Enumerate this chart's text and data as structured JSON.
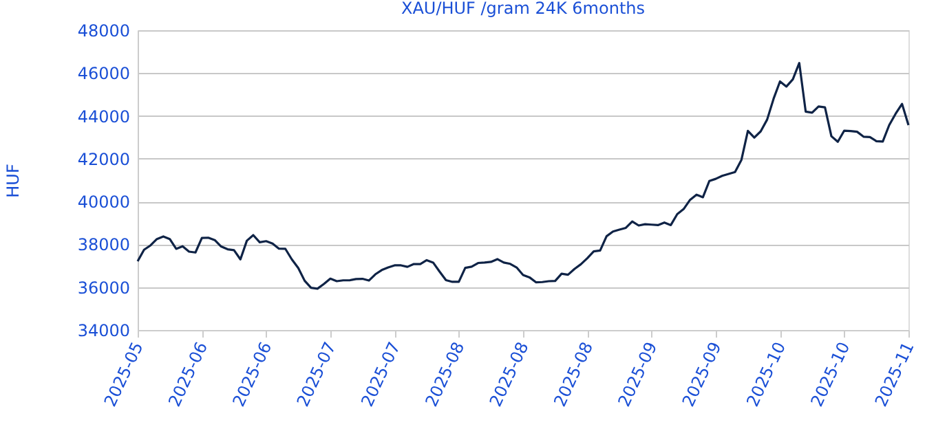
{
  "chart_data": {
    "type": "line",
    "title": "XAU/HUF /gram 24K 6months",
    "ylabel": "HUF",
    "categories": [
      "2025-05",
      null,
      null,
      null,
      null,
      null,
      null,
      null,
      null,
      null,
      "2025-06",
      null,
      null,
      null,
      null,
      null,
      null,
      null,
      null,
      null,
      "2025-06",
      null,
      null,
      null,
      null,
      null,
      null,
      null,
      null,
      null,
      "2025-07",
      null,
      null,
      null,
      null,
      null,
      null,
      null,
      null,
      null,
      "2025-07",
      null,
      null,
      null,
      null,
      null,
      null,
      null,
      null,
      null,
      "2025-08",
      null,
      null,
      null,
      null,
      null,
      null,
      null,
      null,
      null,
      "2025-08",
      null,
      null,
      null,
      null,
      null,
      null,
      null,
      null,
      null,
      "2025-08",
      null,
      null,
      null,
      null,
      null,
      null,
      null,
      null,
      null,
      "2025-09",
      null,
      null,
      null,
      null,
      null,
      null,
      null,
      null,
      null,
      "2025-09",
      null,
      null,
      null,
      null,
      null,
      null,
      null,
      null,
      null,
      "2025-10",
      null,
      null,
      null,
      null,
      null,
      null,
      null,
      null,
      null,
      "2025-10",
      null,
      null,
      null,
      null,
      null,
      null,
      null,
      null,
      null,
      "2025-11"
    ],
    "series": [
      {
        "color": "#0f2346",
        "values": [
          37210,
          37750,
          37950,
          38250,
          38370,
          38250,
          37790,
          37910,
          37660,
          37620,
          38300,
          38310,
          38200,
          37900,
          37770,
          37730,
          37300,
          38170,
          38430,
          38100,
          38150,
          38040,
          37800,
          37790,
          37300,
          36900,
          36300,
          35970,
          35930,
          36150,
          36400,
          36280,
          36320,
          36320,
          36380,
          36390,
          36310,
          36600,
          36800,
          36920,
          37020,
          37020,
          36950,
          37080,
          37080,
          37260,
          37150,
          36730,
          36330,
          36250,
          36250,
          36900,
          36960,
          37130,
          37150,
          37180,
          37310,
          37150,
          37090,
          36920,
          36570,
          36460,
          36230,
          36240,
          36280,
          36290,
          36630,
          36580,
          36850,
          37070,
          37350,
          37670,
          37710,
          38380,
          38600,
          38690,
          38770,
          39070,
          38880,
          38940,
          38920,
          38900,
          39020,
          38900,
          39410,
          39650,
          40080,
          40320,
          40200,
          40960,
          41060,
          41200,
          41290,
          41380,
          41950,
          43300,
          42990,
          43280,
          43830,
          44800,
          45610,
          45370,
          45710,
          46470,
          44200,
          44150,
          44440,
          44400,
          43050,
          42790,
          43310,
          43290,
          43260,
          43030,
          43010,
          42820,
          42800,
          43570,
          44100,
          44560,
          43570
        ]
      }
    ],
    "ylim": [
      34000,
      48000
    ],
    "yticks": [
      34000,
      36000,
      38000,
      40000,
      42000,
      44000,
      46000,
      48000
    ],
    "grid": "y",
    "legend": false,
    "marker": "none",
    "line_style": "solid"
  }
}
